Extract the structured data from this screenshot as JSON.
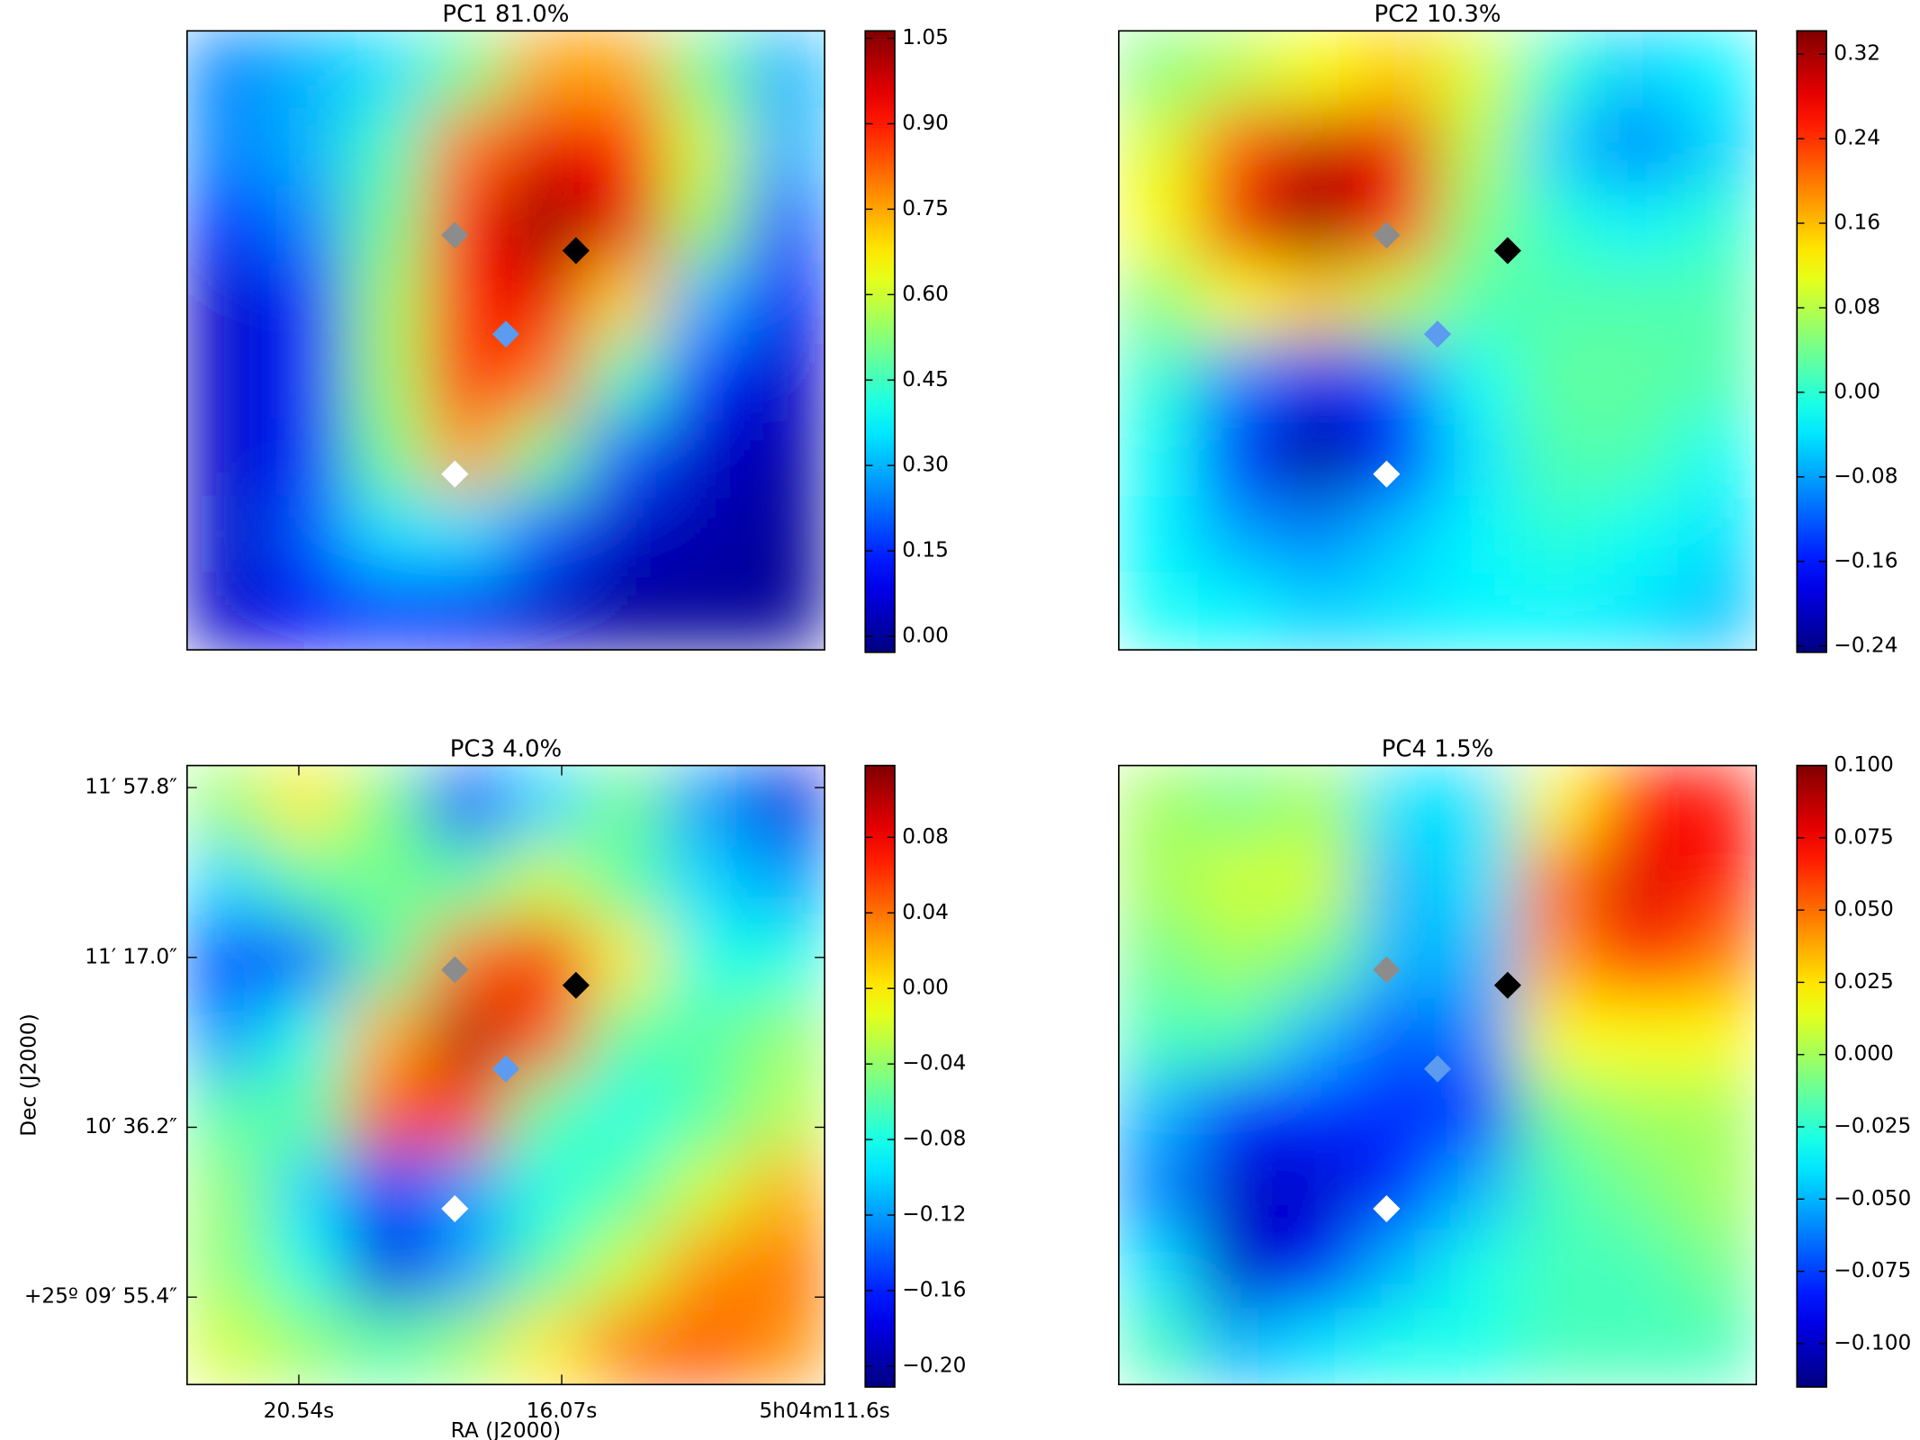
{
  "chart_data": [
    {
      "type": "heatmap",
      "title": "PC1 81.0%",
      "colormap": "jet",
      "zlim": [
        -0.028,
        1.063
      ],
      "zticks": [
        {
          "value": 0.0,
          "label": "0.00"
        },
        0.15,
        {
          "value": 0.3,
          "label": "0.30"
        },
        0.45,
        {
          "value": 0.6,
          "label": "0.60"
        },
        0.75,
        {
          "value": 0.9,
          "label": "0.90"
        },
        1.05
      ],
      "z": [
        [
          0.25,
          0.3,
          0.35,
          0.5,
          0.75,
          0.75,
          0.5,
          0.3
        ],
        [
          0.25,
          0.3,
          0.45,
          0.8,
          0.95,
          0.9,
          0.6,
          0.3
        ],
        [
          0.15,
          0.25,
          0.5,
          0.9,
          1.05,
          0.95,
          0.55,
          0.2
        ],
        [
          0.05,
          0.15,
          0.55,
          0.9,
          0.95,
          0.7,
          0.3,
          0.1
        ],
        [
          0.05,
          0.15,
          0.55,
          0.9,
          0.8,
          0.45,
          0.15,
          0.05
        ],
        [
          0.05,
          0.15,
          0.5,
          0.75,
          0.5,
          0.2,
          0.05,
          0.02
        ],
        [
          0.05,
          0.2,
          0.35,
          0.35,
          0.2,
          0.05,
          0.02,
          0.0
        ],
        [
          0.05,
          0.1,
          0.15,
          0.1,
          0.05,
          0.0,
          0.0,
          0.0
        ]
      ]
    },
    {
      "type": "heatmap",
      "title": "PC2 10.3%",
      "colormap": "jet",
      "zlim": [
        -0.246,
        0.342
      ],
      "zticks": [
        {
          "value": -0.24,
          "label": "−0.24"
        },
        {
          "value": -0.16,
          "label": "−0.16"
        },
        {
          "value": -0.08,
          "label": "−0.08"
        },
        {
          "value": 0.0,
          "label": "0.00"
        },
        0.08,
        0.16,
        0.24,
        0.32
      ],
      "z": [
        [
          0.05,
          0.08,
          0.12,
          0.15,
          0.1,
          0.0,
          -0.05,
          -0.03
        ],
        [
          0.1,
          0.22,
          0.3,
          0.28,
          0.08,
          -0.05,
          -0.1,
          -0.05
        ],
        [
          0.12,
          0.28,
          0.33,
          0.25,
          0.05,
          0.0,
          -0.03,
          0.0
        ],
        [
          0.05,
          0.12,
          0.15,
          0.08,
          0.02,
          0.02,
          0.02,
          0.02
        ],
        [
          0.0,
          -0.1,
          -0.18,
          -0.12,
          -0.02,
          0.03,
          0.03,
          0.02
        ],
        [
          -0.02,
          -0.15,
          -0.24,
          -0.16,
          -0.04,
          0.02,
          0.02,
          -0.02
        ],
        [
          -0.03,
          -0.08,
          -0.1,
          -0.06,
          -0.03,
          0.0,
          -0.02,
          -0.04
        ],
        [
          -0.02,
          -0.03,
          -0.05,
          -0.04,
          -0.03,
          -0.03,
          -0.04,
          -0.06
        ]
      ]
    },
    {
      "type": "heatmap",
      "title": "PC3 4.0%",
      "colormap": "jet",
      "x_label": "RA (J2000)",
      "y_label": "Dec (J2000)",
      "xlim": [
        22.44,
        11.6
      ],
      "xticks": [
        {
          "value": 20.54,
          "label": "20.54s"
        },
        {
          "value": 16.07,
          "label": "16.07s"
        },
        {
          "value": 11.6,
          "label": "5h04m11.6s"
        }
      ],
      "ylim": [
        574.4,
        723.1
      ],
      "yticks": [
        {
          "value": 595.4,
          "label": "+25º 09′ 55.4″"
        },
        {
          "value": 636.2,
          "label": "10′ 36.2″"
        },
        {
          "value": 677.0,
          "label": "11′ 17.0″"
        },
        {
          "value": 717.8,
          "label": "11′ 57.8″"
        }
      ],
      "zlim": [
        -0.211,
        0.118
      ],
      "zticks": [
        {
          "value": -0.2,
          "label": "−0.20"
        },
        {
          "value": -0.16,
          "label": "−0.16"
        },
        {
          "value": -0.12,
          "label": "−0.12"
        },
        {
          "value": -0.08,
          "label": "−0.08"
        },
        {
          "value": -0.04,
          "label": "−0.04"
        },
        {
          "value": 0.0,
          "label": "0.00"
        },
        0.04,
        0.08
      ],
      "z": [
        [
          -0.04,
          0.0,
          -0.05,
          -0.15,
          -0.1,
          -0.05,
          -0.12,
          -0.18
        ],
        [
          -0.1,
          -0.06,
          -0.05,
          -0.06,
          -0.02,
          -0.06,
          -0.1,
          -0.12
        ],
        [
          -0.15,
          -0.14,
          -0.06,
          0.04,
          0.08,
          0.0,
          -0.08,
          -0.08
        ],
        [
          -0.12,
          -0.08,
          0.02,
          0.1,
          0.05,
          -0.06,
          -0.06,
          -0.04
        ],
        [
          -0.06,
          -0.06,
          0.05,
          0.06,
          -0.06,
          -0.08,
          -0.06,
          -0.03
        ],
        [
          -0.04,
          -0.1,
          -0.16,
          -0.12,
          -0.08,
          -0.06,
          -0.02,
          0.02
        ],
        [
          -0.04,
          -0.08,
          -0.18,
          -0.12,
          -0.06,
          -0.02,
          0.03,
          0.04
        ],
        [
          -0.02,
          -0.04,
          -0.06,
          -0.04,
          0.0,
          0.04,
          0.05,
          0.03
        ]
      ]
    },
    {
      "type": "heatmap",
      "title": "PC4 1.5%",
      "colormap": "jet",
      "zlim": [
        -0.115,
        0.1
      ],
      "zticks": [
        {
          "value": -0.1,
          "label": "−0.100"
        },
        {
          "value": -0.075,
          "label": "−0.075"
        },
        {
          "value": -0.05,
          "label": "−0.050"
        },
        {
          "value": -0.025,
          "label": "−0.025"
        },
        {
          "value": 0.0,
          "label": "0.000"
        },
        0.025,
        {
          "value": 0.05,
          "label": "0.050"
        },
        0.075,
        {
          "value": 0.1,
          "label": "0.100"
        }
      ],
      "z": [
        [
          0.0,
          -0.01,
          0.0,
          -0.04,
          -0.04,
          0.02,
          0.07,
          0.07
        ],
        [
          0.0,
          0.01,
          0.01,
          -0.05,
          -0.04,
          0.05,
          0.08,
          0.07
        ],
        [
          -0.01,
          0.0,
          -0.01,
          -0.05,
          -0.05,
          0.04,
          0.07,
          0.05
        ],
        [
          -0.02,
          -0.02,
          -0.05,
          -0.07,
          -0.06,
          0.02,
          0.02,
          0.02
        ],
        [
          -0.05,
          -0.08,
          -0.08,
          -0.08,
          -0.08,
          -0.01,
          0.0,
          0.0
        ],
        [
          -0.06,
          -0.1,
          -0.1,
          -0.08,
          -0.05,
          -0.02,
          -0.01,
          0.0
        ],
        [
          -0.04,
          -0.1,
          -0.09,
          -0.05,
          -0.03,
          -0.02,
          -0.02,
          -0.01
        ],
        [
          -0.02,
          -0.05,
          -0.04,
          -0.03,
          -0.03,
          -0.02,
          -0.02,
          -0.02
        ]
      ]
    }
  ]
}
